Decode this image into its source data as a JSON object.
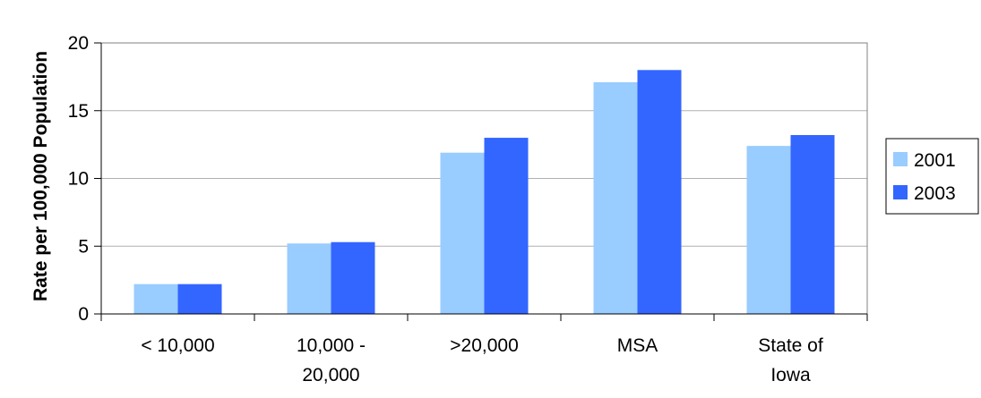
{
  "chart_data": {
    "type": "bar",
    "title": "",
    "xlabel": "",
    "ylabel": "Rate per 100,000 Population",
    "categories": [
      [
        "< 10,000"
      ],
      [
        "10,000 -",
        "20,000"
      ],
      [
        ">20,000"
      ],
      [
        "MSA"
      ],
      [
        "State of",
        "Iowa"
      ]
    ],
    "series": [
      {
        "name": "2001",
        "color": "#99ccff",
        "values": [
          2.2,
          5.2,
          11.9,
          17.1,
          12.4
        ]
      },
      {
        "name": "2003",
        "color": "#3366ff",
        "values": [
          2.2,
          5.3,
          13.0,
          18.0,
          13.2
        ]
      }
    ],
    "ylim": [
      0,
      20
    ],
    "yticks": [
      0,
      5,
      10,
      15,
      20
    ],
    "grid": true,
    "legend_position": "right"
  }
}
